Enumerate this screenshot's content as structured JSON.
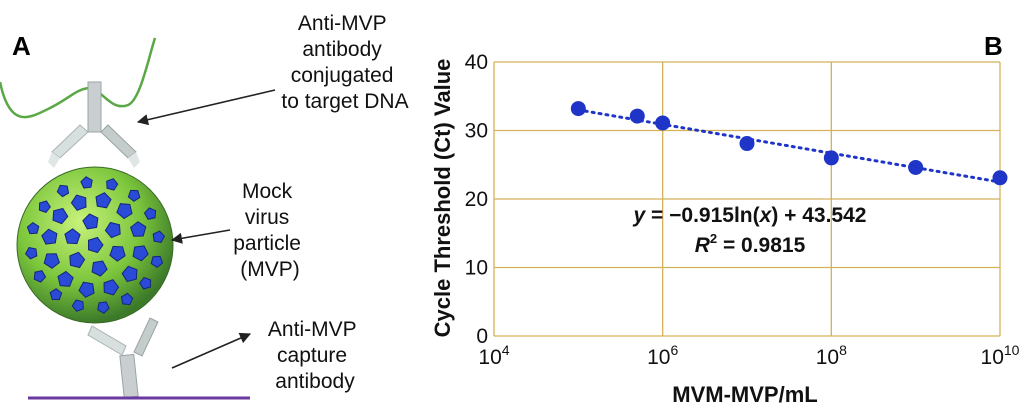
{
  "panels": {
    "a_label": "A",
    "b_label": "B"
  },
  "diagram": {
    "antibody_dna_label": [
      "Anti-MVP",
      "antibody",
      "conjugated",
      "to target DNA"
    ],
    "mvp_label": [
      "Mock",
      "virus",
      "particle",
      "(MVP)"
    ],
    "capture_label": [
      "Anti-MVP",
      "capture",
      "antibody"
    ],
    "colors": {
      "dna_strand": "#5aa845",
      "antibody": "#cfd6d6",
      "virus_blue": "#2a4ad8",
      "virus_green": "#8ed24a",
      "surface": "#6a3aa0"
    }
  },
  "chart_data": {
    "type": "scatter",
    "x_scale": "log10",
    "xlabel": "MVM-MVP/mL",
    "ylabel": "Cycle Threshold (Ct) Value",
    "xlim_exponent": [
      4,
      10
    ],
    "ylim": [
      0,
      40
    ],
    "x_tick_exponents": [
      4,
      6,
      8,
      10
    ],
    "x_tick_base": "10",
    "y_ticks": [
      0,
      10,
      20,
      30,
      40
    ],
    "points": [
      {
        "x": 100000,
        "y": 33.2
      },
      {
        "x": 500000,
        "y": 32.1
      },
      {
        "x": 1000000,
        "y": 31.1
      },
      {
        "x": 10000000,
        "y": 28.1
      },
      {
        "x": 100000000,
        "y": 26.0
      },
      {
        "x": 1000000000,
        "y": 24.6
      },
      {
        "x": 10000000000,
        "y": 23.1
      }
    ],
    "trendline": {
      "slope": -0.915,
      "intercept": 43.542,
      "style": "dotted"
    },
    "equation": {
      "line1": {
        "lhs": "y",
        "mid": " = −0.915ln(",
        "var": "x",
        "rhs": ") + 43.542"
      },
      "line2": {
        "r": "R",
        "sup": "2",
        "rhs": " = 0.9815"
      }
    },
    "colors": {
      "grid": "#d4b25a",
      "points": "#1f35c8",
      "line": "#1f35c8"
    }
  }
}
